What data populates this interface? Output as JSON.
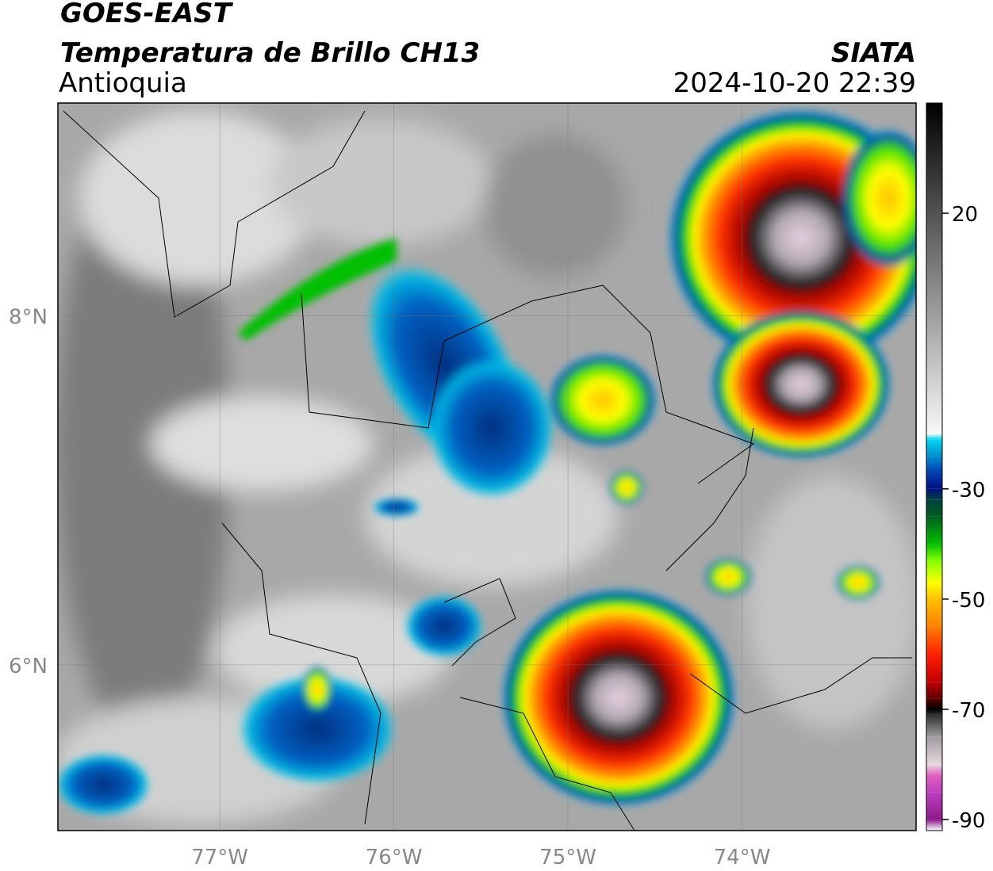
{
  "header": {
    "title": "GOES-EAST",
    "subtitle": "Temperatura de Brillo CH13",
    "region": "Antioquia",
    "source": "SIATA",
    "datetime": "2024-10-20 22:39"
  },
  "map": {
    "xlim": [
      -77.93,
      -73.0
    ],
    "ylim": [
      5.05,
      9.22
    ],
    "xticks": [
      {
        "value": -77,
        "label": "77°W"
      },
      {
        "value": -76,
        "label": "76°W"
      },
      {
        "value": -75,
        "label": "75°W"
      },
      {
        "value": -74,
        "label": "74°W"
      }
    ],
    "yticks": [
      {
        "value": 6,
        "label": "6°N"
      },
      {
        "value": 8,
        "label": "8°N"
      }
    ]
  },
  "colorbar": {
    "lim": [
      -92,
      40
    ],
    "ticks": [
      20,
      -30,
      -50,
      -70,
      -90
    ],
    "colormap": [
      {
        "value": -92,
        "color": "#ffffff"
      },
      {
        "value": -90,
        "color": "#8b1a8b"
      },
      {
        "value": -85,
        "color": "#c040c0"
      },
      {
        "value": -82,
        "color": "#e060c0"
      },
      {
        "value": -80,
        "color": "#e8d8e0"
      },
      {
        "value": -75,
        "color": "#a09ca0"
      },
      {
        "value": -71,
        "color": "#303030"
      },
      {
        "value": -70,
        "color": "#000000"
      },
      {
        "value": -68,
        "color": "#600000"
      },
      {
        "value": -65,
        "color": "#c00000"
      },
      {
        "value": -60,
        "color": "#ff2000"
      },
      {
        "value": -55,
        "color": "#ff8000"
      },
      {
        "value": -50,
        "color": "#ffc000"
      },
      {
        "value": -47,
        "color": "#ffff00"
      },
      {
        "value": -43,
        "color": "#80ff00"
      },
      {
        "value": -40,
        "color": "#00c000"
      },
      {
        "value": -35,
        "color": "#006020"
      },
      {
        "value": -32,
        "color": "#004040"
      },
      {
        "value": -30,
        "color": "#001080"
      },
      {
        "value": -27,
        "color": "#0040b0"
      },
      {
        "value": -24,
        "color": "#0090d0"
      },
      {
        "value": -21,
        "color": "#00d8f0"
      },
      {
        "value": -20,
        "color": "#f8f8f8"
      },
      {
        "value": 40,
        "color": "#000000"
      }
    ]
  }
}
